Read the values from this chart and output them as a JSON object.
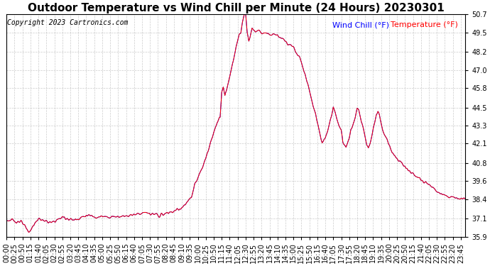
{
  "title": "Outdoor Temperature vs Wind Chill per Minute (24 Hours) 20230301",
  "copyright": "Copyright 2023 Cartronics.com",
  "legend_wind_chill": "Wind Chill (°F)",
  "legend_temperature": "Temperature (°F)",
  "wind_chill_color": "blue",
  "temperature_color": "red",
  "background_color": "#ffffff",
  "grid_color": "#aaaaaa",
  "ylim_min": 35.9,
  "ylim_max": 50.7,
  "yticks": [
    35.9,
    37.1,
    38.4,
    39.6,
    40.8,
    42.1,
    43.3,
    44.5,
    45.8,
    47.0,
    48.2,
    49.5,
    50.7
  ],
  "title_fontsize": 11,
  "tick_fontsize": 7,
  "legend_fontsize": 8,
  "copyright_fontsize": 7
}
